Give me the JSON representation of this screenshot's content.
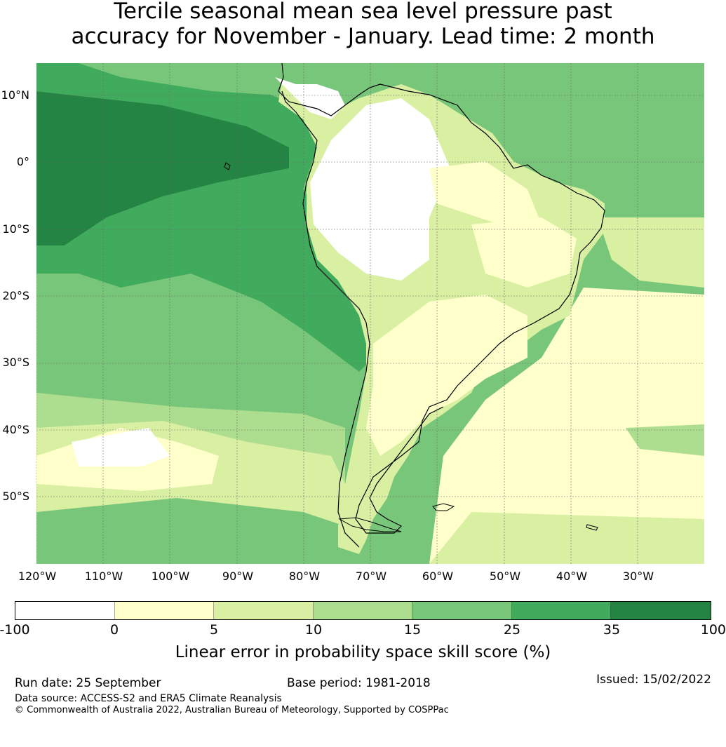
{
  "title": {
    "line1": "Tercile seasonal mean sea level pressure past",
    "line2": "accuracy for November - January. Lead time: 2 month"
  },
  "map": {
    "lat_labels": [
      "10°N",
      "0°",
      "10°S",
      "20°S",
      "30°S",
      "40°S",
      "50°S"
    ],
    "lon_labels": [
      "120°W",
      "110°W",
      "100°W",
      "90°W",
      "80°W",
      "70°W",
      "60°W",
      "50°W",
      "40°W",
      "30°W"
    ],
    "colors": {
      "neg": "#ffffff",
      "c0_5": "#ffffcc",
      "c5_10": "#d9f0a3",
      "c10_15": "#addd8e",
      "c15_25": "#78c679",
      "c25_35": "#41ab5d",
      "c35_100": "#238443",
      "coast": "#000000",
      "grid": "#6b6b6b"
    }
  },
  "colorbar": {
    "ticks": [
      "-100",
      "0",
      "5",
      "10",
      "15",
      "25",
      "35",
      "100"
    ],
    "segments": [
      "#ffffff",
      "#ffffcc",
      "#d9f0a3",
      "#addd8e",
      "#78c679",
      "#41ab5d",
      "#238443"
    ],
    "label": "Linear error in probability space skill score (%)"
  },
  "footer": {
    "run_date": "Run date: 25 September",
    "base_period": "Base period: 1981-2018",
    "issued": "Issued: 15/02/2022",
    "data_source": "Data source: ACCESS-S2 and ERA5 Climate Reanalysis",
    "copyright": "© Commonwealth of Australia 2022, Australian Bureau of Meteorology, Supported by COSPPac"
  }
}
